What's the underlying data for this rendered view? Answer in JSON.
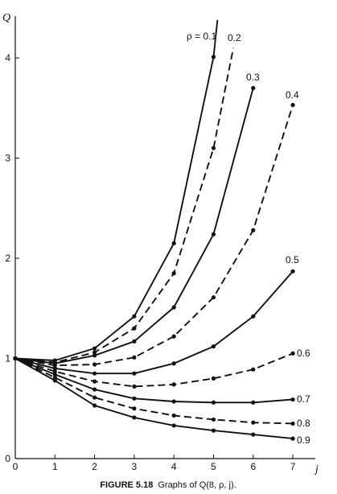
{
  "chart_data": {
    "type": "line",
    "xlabel": "j",
    "ylabel": "Q",
    "xlim": [
      0,
      7.5
    ],
    "ylim": [
      0,
      4.4
    ],
    "xticks": [
      "0",
      "1",
      "2",
      "3",
      "4",
      "5",
      "6",
      "7"
    ],
    "yticks": [
      "0",
      "1",
      "2",
      "3",
      "4"
    ],
    "caption": {
      "figure": "FIGURE 5.18",
      "text": "Graphs of Q(8, ρ, j)."
    },
    "series": [
      {
        "name": "ρ = 0.1",
        "style": "solid",
        "x": [
          0,
          1,
          2,
          3,
          4,
          5
        ],
        "y": [
          1.0,
          0.98,
          1.1,
          1.42,
          2.15,
          4.01
        ],
        "end": [
          5.1,
          4.38
        ]
      },
      {
        "name": "0.2",
        "style": "dashed",
        "x": [
          0,
          1,
          2,
          3,
          4,
          5
        ],
        "y": [
          1.0,
          0.96,
          1.06,
          1.3,
          1.85,
          3.1
        ],
        "end": [
          5.5,
          4.1
        ]
      },
      {
        "name": "0.3",
        "style": "solid",
        "x": [
          0,
          1,
          2,
          3,
          4,
          5,
          6
        ],
        "y": [
          1.0,
          0.95,
          1.03,
          1.17,
          1.51,
          2.24,
          3.7
        ]
      },
      {
        "name": "0.4",
        "style": "dashed",
        "x": [
          0,
          1,
          2,
          3,
          4,
          5,
          6,
          7
        ],
        "y": [
          1.0,
          0.93,
          0.94,
          1.01,
          1.22,
          1.61,
          2.28,
          3.53
        ]
      },
      {
        "name": "0.5",
        "style": "solid",
        "x": [
          0,
          1,
          2,
          3,
          4,
          5,
          6,
          7
        ],
        "y": [
          1.0,
          0.9,
          0.85,
          0.85,
          0.95,
          1.12,
          1.42,
          1.87
        ]
      },
      {
        "name": "0.6",
        "style": "dashed",
        "x": [
          0,
          1,
          2,
          3,
          4,
          5,
          6,
          7
        ],
        "y": [
          1.0,
          0.87,
          0.77,
          0.72,
          0.74,
          0.8,
          0.89,
          1.05
        ]
      },
      {
        "name": "0.7",
        "style": "solid",
        "x": [
          0,
          1,
          2,
          3,
          4,
          5,
          6,
          7
        ],
        "y": [
          1.0,
          0.84,
          0.69,
          0.6,
          0.57,
          0.56,
          0.56,
          0.59
        ]
      },
      {
        "name": "0.8",
        "style": "dashed",
        "x": [
          0,
          1,
          2,
          3,
          4,
          5,
          6,
          7
        ],
        "y": [
          1.0,
          0.81,
          0.61,
          0.5,
          0.43,
          0.39,
          0.36,
          0.35
        ]
      },
      {
        "name": "0.9",
        "style": "solid",
        "x": [
          0,
          1,
          2,
          3,
          4,
          5,
          6,
          7
        ],
        "y": [
          1.0,
          0.78,
          0.53,
          0.41,
          0.33,
          0.28,
          0.24,
          0.2
        ]
      }
    ]
  }
}
